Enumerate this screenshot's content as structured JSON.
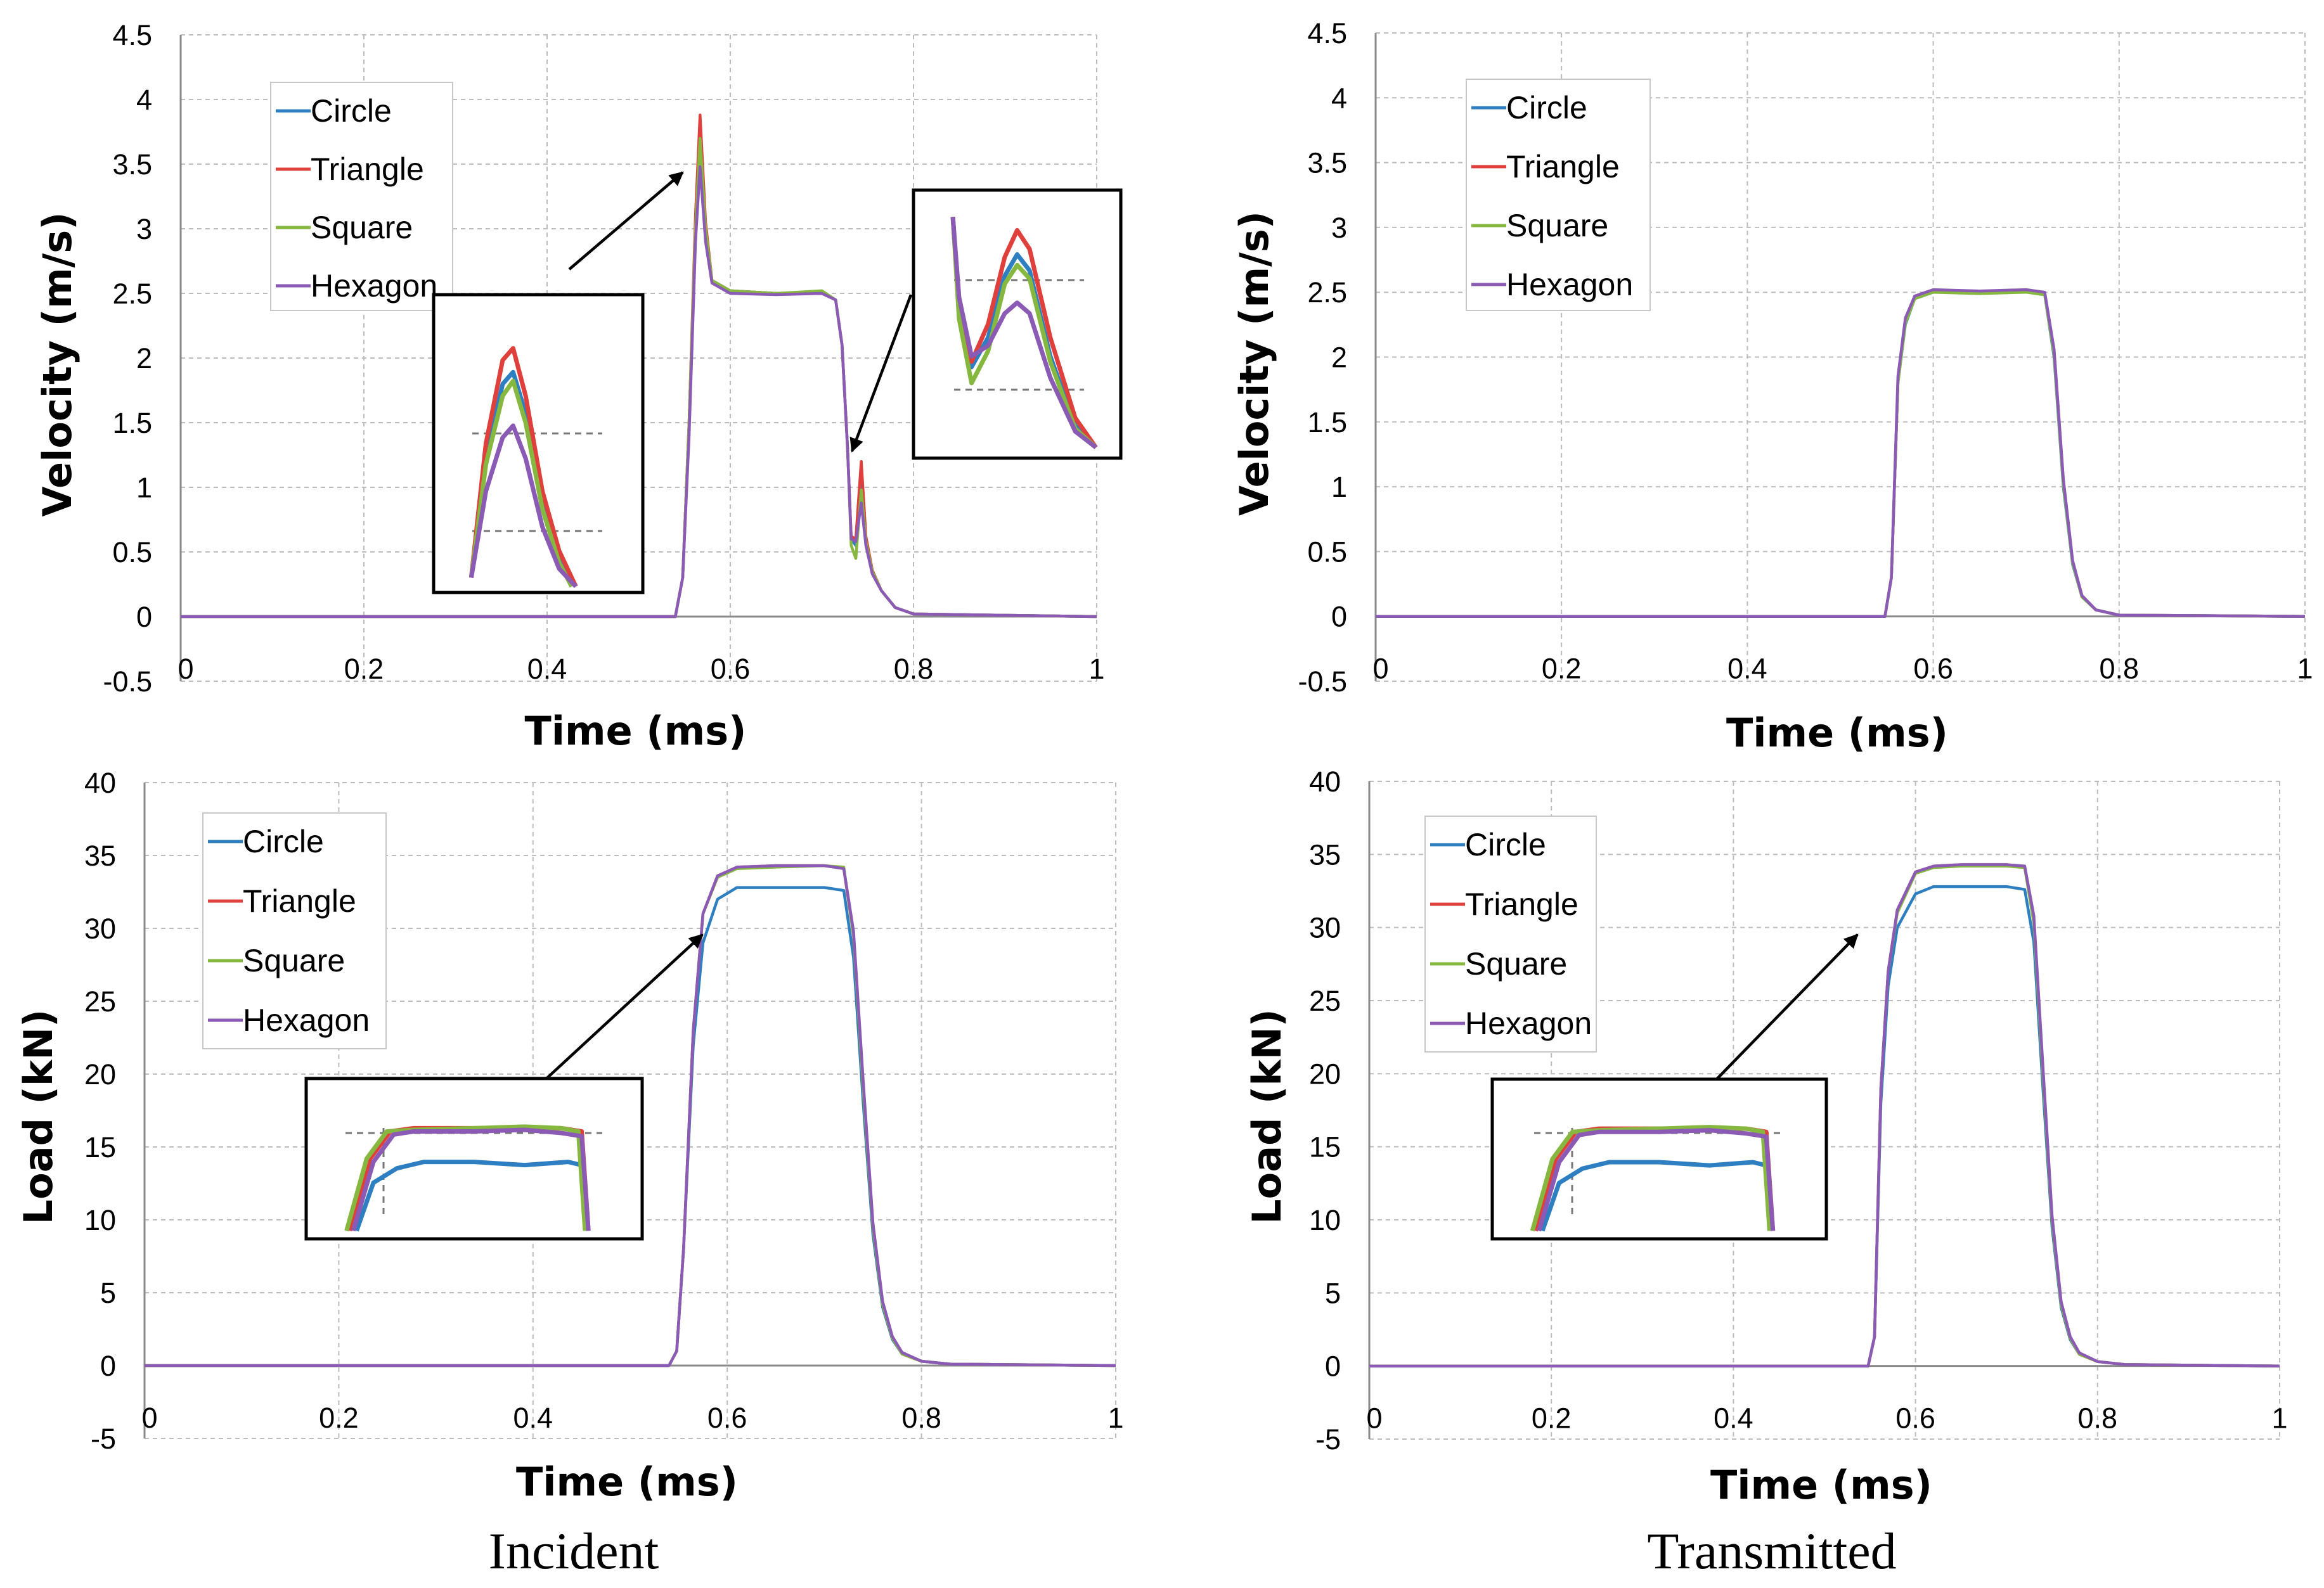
{
  "figure": {
    "captions": [
      "Incident",
      "Transmitted"
    ],
    "colors": {
      "Circle": "#2e7fc2",
      "Triangle": "#e0403c",
      "Square": "#86b840",
      "Hexagon": "#8a5ab4"
    }
  },
  "chart_data": [
    {
      "type": "line",
      "panel": "incident-velocity",
      "xlabel": "Time (ms)",
      "ylabel": "Velocity (m/s)",
      "xlim": [
        0,
        1
      ],
      "ylim": [
        -0.5,
        4.5
      ],
      "xticks": [
        0,
        0.2,
        0.4,
        0.6,
        0.8,
        1
      ],
      "xtick_labels": [
        "0",
        "0.2",
        "0.4",
        "0.6",
        "0.8",
        "1"
      ],
      "yticks": [
        -0.5,
        0,
        0.5,
        1,
        1.5,
        2,
        2.5,
        3,
        3.5,
        4,
        4.5
      ],
      "ytick_labels": [
        "-0.5",
        "0",
        "0.5",
        "1",
        "1.5",
        "2",
        "2.5",
        "3",
        "3.5",
        "4",
        "4.5"
      ],
      "grid": true,
      "legend_position": "top-left",
      "series": [
        {
          "name": "Circle",
          "x": [
            0,
            0.54,
            0.548,
            0.555,
            0.562,
            0.567,
            0.573,
            0.58,
            0.6,
            0.65,
            0.7,
            0.715,
            0.722,
            0.728,
            0.732,
            0.737,
            0.743,
            0.748,
            0.755,
            0.765,
            0.78,
            0.8,
            1
          ],
          "y": [
            0,
            0,
            0.3,
            1.5,
            3.0,
            3.72,
            3.0,
            2.6,
            2.52,
            2.5,
            2.5,
            2.45,
            2.1,
            1.3,
            0.6,
            0.55,
            1.02,
            0.6,
            0.35,
            0.2,
            0.07,
            0.02,
            0
          ]
        },
        {
          "name": "Triangle",
          "x": [
            0,
            0.54,
            0.548,
            0.555,
            0.562,
            0.567,
            0.573,
            0.58,
            0.6,
            0.65,
            0.7,
            0.715,
            0.722,
            0.728,
            0.732,
            0.737,
            0.743,
            0.748,
            0.755,
            0.765,
            0.78,
            0.8,
            1
          ],
          "y": [
            0,
            0,
            0.3,
            1.5,
            3.1,
            3.88,
            3.05,
            2.6,
            2.52,
            2.5,
            2.5,
            2.45,
            2.1,
            1.3,
            0.62,
            0.6,
            1.2,
            0.62,
            0.36,
            0.2,
            0.07,
            0.02,
            0
          ]
        },
        {
          "name": "Square",
          "x": [
            0,
            0.54,
            0.548,
            0.555,
            0.562,
            0.567,
            0.573,
            0.58,
            0.6,
            0.65,
            0.7,
            0.715,
            0.722,
            0.728,
            0.732,
            0.737,
            0.743,
            0.748,
            0.755,
            0.765,
            0.78,
            0.8,
            1
          ],
          "y": [
            0,
            0,
            0.3,
            1.5,
            3.0,
            3.7,
            3.0,
            2.6,
            2.52,
            2.5,
            2.52,
            2.45,
            2.1,
            1.3,
            0.55,
            0.45,
            0.98,
            0.58,
            0.35,
            0.2,
            0.07,
            0.02,
            0
          ]
        },
        {
          "name": "Hexagon",
          "x": [
            0,
            0.54,
            0.548,
            0.555,
            0.562,
            0.567,
            0.573,
            0.58,
            0.6,
            0.65,
            0.7,
            0.715,
            0.722,
            0.728,
            0.732,
            0.737,
            0.743,
            0.748,
            0.755,
            0.765,
            0.78,
            0.8,
            1
          ],
          "y": [
            0,
            0,
            0.3,
            1.4,
            2.9,
            3.48,
            2.9,
            2.58,
            2.5,
            2.49,
            2.5,
            2.45,
            2.1,
            1.3,
            0.6,
            0.58,
            0.88,
            0.55,
            0.33,
            0.2,
            0.07,
            0.02,
            0
          ]
        }
      ]
    },
    {
      "type": "line",
      "panel": "transmitted-velocity",
      "xlabel": "Time (ms)",
      "ylabel": "Velocity (m/s)",
      "xlim": [
        0,
        1
      ],
      "ylim": [
        -0.5,
        4.5
      ],
      "xticks": [
        0,
        0.2,
        0.4,
        0.6,
        0.8,
        1
      ],
      "xtick_labels": [
        "0",
        "0.2",
        "0.4",
        "0.6",
        "0.8",
        "1"
      ],
      "yticks": [
        -0.5,
        0,
        0.5,
        1,
        1.5,
        2,
        2.5,
        3,
        3.5,
        4,
        4.5
      ],
      "ytick_labels": [
        "-0.5",
        "0",
        "0.5",
        "1",
        "1.5",
        "2",
        "2.5",
        "3",
        "3.5",
        "4",
        "4.5"
      ],
      "grid": true,
      "legend_position": "top-left",
      "series": [
        {
          "name": "Circle",
          "x": [
            0,
            0.548,
            0.555,
            0.562,
            0.57,
            0.58,
            0.6,
            0.65,
            0.7,
            0.72,
            0.73,
            0.74,
            0.75,
            0.76,
            0.775,
            0.8,
            1
          ],
          "y": [
            0,
            0,
            0.3,
            1.8,
            2.25,
            2.45,
            2.5,
            2.5,
            2.51,
            2.48,
            2.0,
            1.0,
            0.4,
            0.15,
            0.05,
            0.01,
            0
          ]
        },
        {
          "name": "Triangle",
          "x": [
            0,
            0.548,
            0.555,
            0.562,
            0.57,
            0.58,
            0.6,
            0.65,
            0.7,
            0.72,
            0.73,
            0.74,
            0.75,
            0.76,
            0.775,
            0.8,
            1
          ],
          "y": [
            0,
            0,
            0.3,
            1.8,
            2.28,
            2.46,
            2.51,
            2.5,
            2.51,
            2.49,
            2.05,
            1.05,
            0.42,
            0.16,
            0.05,
            0.01,
            0
          ]
        },
        {
          "name": "Square",
          "x": [
            0,
            0.548,
            0.555,
            0.562,
            0.57,
            0.58,
            0.6,
            0.65,
            0.7,
            0.72,
            0.73,
            0.74,
            0.75,
            0.76,
            0.775,
            0.8,
            1
          ],
          "y": [
            0,
            0,
            0.3,
            1.8,
            2.26,
            2.45,
            2.5,
            2.49,
            2.5,
            2.48,
            2.02,
            1.02,
            0.41,
            0.15,
            0.05,
            0.01,
            0
          ]
        },
        {
          "name": "Hexagon",
          "x": [
            0,
            0.548,
            0.555,
            0.562,
            0.57,
            0.58,
            0.6,
            0.65,
            0.7,
            0.72,
            0.73,
            0.74,
            0.75,
            0.76,
            0.775,
            0.8,
            1
          ],
          "y": [
            0,
            0,
            0.3,
            1.85,
            2.3,
            2.47,
            2.52,
            2.51,
            2.52,
            2.5,
            2.06,
            1.06,
            0.43,
            0.16,
            0.05,
            0.01,
            0
          ]
        }
      ]
    },
    {
      "type": "line",
      "panel": "incident-load",
      "xlabel": "Time (ms)",
      "ylabel": "Load (kN)",
      "xlim": [
        0,
        1
      ],
      "ylim": [
        -5,
        40
      ],
      "xticks": [
        0,
        0.2,
        0.4,
        0.6,
        0.8,
        1
      ],
      "xtick_labels": [
        "0",
        "0.2",
        "0.4",
        "0.6",
        "0.8",
        "1"
      ],
      "yticks": [
        -5,
        0,
        5,
        10,
        15,
        20,
        25,
        30,
        35,
        40
      ],
      "ytick_labels": [
        "-5",
        "0",
        "5",
        "10",
        "15",
        "20",
        "25",
        "30",
        "35",
        "40"
      ],
      "grid": true,
      "legend_position": "top-left",
      "series": [
        {
          "name": "Circle",
          "x": [
            0,
            0.54,
            0.548,
            0.555,
            0.565,
            0.575,
            0.59,
            0.61,
            0.65,
            0.7,
            0.72,
            0.73,
            0.74,
            0.75,
            0.76,
            0.77,
            0.78,
            0.8,
            0.83,
            1
          ],
          "y": [
            0,
            0,
            1,
            8,
            22,
            29,
            32,
            32.8,
            32.8,
            32.8,
            32.6,
            28,
            18,
            9,
            4,
            1.8,
            0.8,
            0.3,
            0.1,
            0
          ]
        },
        {
          "name": "Triangle",
          "x": [
            0,
            0.54,
            0.548,
            0.555,
            0.565,
            0.575,
            0.59,
            0.61,
            0.65,
            0.7,
            0.72,
            0.73,
            0.74,
            0.75,
            0.76,
            0.77,
            0.78,
            0.8,
            0.83,
            1
          ],
          "y": [
            0,
            0,
            1,
            8,
            23,
            31,
            33.6,
            34.2,
            34.3,
            34.3,
            34.1,
            29.5,
            19,
            9.5,
            4.2,
            1.9,
            0.8,
            0.3,
            0.1,
            0
          ]
        },
        {
          "name": "Square",
          "x": [
            0,
            0.54,
            0.548,
            0.555,
            0.565,
            0.575,
            0.59,
            0.61,
            0.65,
            0.7,
            0.72,
            0.73,
            0.74,
            0.75,
            0.76,
            0.77,
            0.78,
            0.8,
            0.83,
            1
          ],
          "y": [
            0,
            0,
            1,
            8,
            23,
            31,
            33.5,
            34.1,
            34.2,
            34.3,
            34.2,
            29.5,
            19,
            9.5,
            4.2,
            1.9,
            0.8,
            0.3,
            0.1,
            0
          ]
        },
        {
          "name": "Hexagon",
          "x": [
            0,
            0.54,
            0.548,
            0.555,
            0.565,
            0.575,
            0.59,
            0.61,
            0.65,
            0.7,
            0.72,
            0.73,
            0.74,
            0.75,
            0.76,
            0.77,
            0.78,
            0.8,
            0.83,
            1
          ],
          "y": [
            0,
            0,
            1,
            8,
            23,
            31,
            33.6,
            34.2,
            34.3,
            34.3,
            34.1,
            29.8,
            19.5,
            9.8,
            4.4,
            2,
            0.9,
            0.3,
            0.1,
            0
          ]
        }
      ]
    },
    {
      "type": "line",
      "panel": "transmitted-load",
      "xlabel": "Time (ms)",
      "ylabel": "Load (kN)",
      "xlim": [
        0,
        1
      ],
      "ylim": [
        -5,
        40
      ],
      "xticks": [
        0,
        0.2,
        0.4,
        0.6,
        0.8,
        1
      ],
      "xtick_labels": [
        "0",
        "0.2",
        "0.4",
        "0.6",
        "0.8",
        "1"
      ],
      "yticks": [
        -5,
        0,
        5,
        10,
        15,
        20,
        25,
        30,
        35,
        40
      ],
      "ytick_labels": [
        "-5",
        "0",
        "5",
        "10",
        "15",
        "20",
        "25",
        "30",
        "35",
        "40"
      ],
      "grid": true,
      "legend_position": "top-left",
      "series": [
        {
          "name": "Circle",
          "x": [
            0,
            0.548,
            0.555,
            0.562,
            0.57,
            0.58,
            0.6,
            0.62,
            0.65,
            0.7,
            0.72,
            0.73,
            0.74,
            0.75,
            0.76,
            0.77,
            0.78,
            0.8,
            0.83,
            1
          ],
          "y": [
            0,
            0,
            2,
            18,
            26,
            30,
            32.3,
            32.8,
            32.8,
            32.8,
            32.6,
            29,
            19,
            9.5,
            4,
            1.8,
            0.8,
            0.3,
            0.1,
            0
          ]
        },
        {
          "name": "Triangle",
          "x": [
            0,
            0.548,
            0.555,
            0.562,
            0.57,
            0.58,
            0.6,
            0.62,
            0.65,
            0.7,
            0.72,
            0.73,
            0.74,
            0.75,
            0.76,
            0.77,
            0.78,
            0.8,
            0.83,
            1
          ],
          "y": [
            0,
            0,
            2,
            19,
            27,
            31.2,
            33.8,
            34.2,
            34.3,
            34.3,
            34.1,
            30.5,
            20,
            10,
            4.2,
            1.9,
            0.8,
            0.3,
            0.1,
            0
          ]
        },
        {
          "name": "Square",
          "x": [
            0,
            0.548,
            0.555,
            0.562,
            0.57,
            0.58,
            0.6,
            0.62,
            0.65,
            0.7,
            0.72,
            0.73,
            0.74,
            0.75,
            0.76,
            0.77,
            0.78,
            0.8,
            0.83,
            1
          ],
          "y": [
            0,
            0,
            2,
            19,
            27,
            31,
            33.7,
            34.1,
            34.2,
            34.2,
            34.1,
            30.3,
            20,
            10,
            4.2,
            1.9,
            0.8,
            0.3,
            0.1,
            0
          ]
        },
        {
          "name": "Hexagon",
          "x": [
            0,
            0.548,
            0.555,
            0.562,
            0.57,
            0.58,
            0.6,
            0.62,
            0.65,
            0.7,
            0.72,
            0.73,
            0.74,
            0.75,
            0.76,
            0.77,
            0.78,
            0.8,
            0.83,
            1
          ],
          "y": [
            0,
            0,
            2,
            19,
            27,
            31.2,
            33.8,
            34.2,
            34.3,
            34.3,
            34.2,
            30.8,
            20.5,
            10.3,
            4.4,
            2,
            0.9,
            0.3,
            0.1,
            0
          ]
        }
      ]
    }
  ]
}
